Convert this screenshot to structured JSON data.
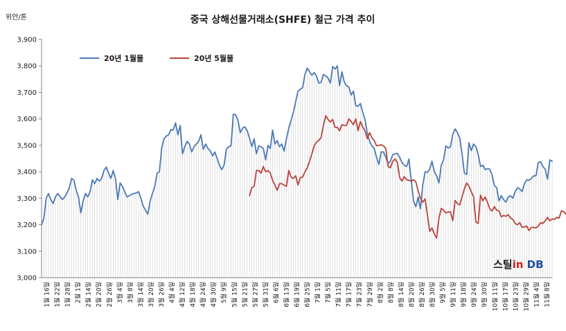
{
  "colors": {
    "series1": "#4a78b4",
    "series2": "#b8423c",
    "grid": "#c9c9c9",
    "axis": "#808080",
    "text": "#1a1a1a"
  },
  "brand": {
    "part1": "스틸",
    "part2": "in",
    "part3": "DB"
  },
  "chart_data": {
    "type": "line",
    "title": "중국 상해선물거래소(SHFE)  철근 가격 추이",
    "unit": "위안/톤",
    "ylim": [
      3000,
      3900
    ],
    "yticks": [
      3000,
      3100,
      3200,
      3300,
      3400,
      3500,
      3600,
      3700,
      3800,
      3900
    ],
    "ytick_labels": [
      "3,000",
      "3,100",
      "3,200",
      "3,300",
      "3,400",
      "3,500",
      "3,600",
      "3,700",
      "3,800",
      "3,900"
    ],
    "legend_position": "top-left",
    "grid": {
      "vertical": true,
      "horizontal": false
    },
    "x_labels": [
      "1월 16일",
      "1월 22일",
      "1월 28일",
      "2월 1일",
      "2월 14일",
      "2월 20일",
      "2월 26일",
      "3월 4일",
      "3월 8일",
      "3월 14일",
      "3월 20일",
      "3월 26일",
      "4월 4일",
      "4월 12일",
      "4월 18일",
      "4월 24일",
      "4월 30일",
      "5월 9일",
      "5월 15일",
      "5월 21일",
      "5월 27일",
      "5월 31일",
      "6월 6일",
      "6월 13일",
      "6월 19일",
      "6월 25일",
      "7월 1일",
      "7월 5일",
      "7월 11일",
      "7월 17일",
      "7월 23일",
      "7월 29일",
      "8월 2일",
      "8월 8일",
      "8월 14일",
      "8월 20일",
      "8월 26일",
      "8월 30일",
      "9월 5일",
      "9월 11일",
      "9월 18일",
      "9월 24일",
      "9월 30일",
      "10월 11일",
      "10월 17일",
      "10월 23일",
      "10월 29일",
      "11월 4일",
      "11월 8일"
    ],
    "series": [
      {
        "name": "20년 1월물",
        "values": [
          3200,
          3225,
          3300,
          3318,
          3295,
          3280,
          3305,
          3318,
          3307,
          3295,
          3305,
          3320,
          3340,
          3375,
          3368,
          3330,
          3305,
          3245,
          3290,
          3318,
          3305,
          3325,
          3370,
          3355,
          3375,
          3365,
          3375,
          3405,
          3418,
          3395,
          3375,
          3405,
          3375,
          3295,
          3358,
          3345,
          3325,
          3305,
          3310,
          3315,
          3318,
          3320,
          3325,
          3300,
          3270,
          3255,
          3240,
          3290,
          3318,
          3345,
          3395,
          3400,
          3490,
          3525,
          3535,
          3540,
          3560,
          3558,
          3585,
          3540,
          3575,
          3468,
          3495,
          3515,
          3505,
          3475,
          3495,
          3505,
          3515,
          3540,
          3485,
          3505,
          3488,
          3480,
          3460,
          3475,
          3450,
          3425,
          3408,
          3425,
          3485,
          3495,
          3498,
          3618,
          3615,
          3595,
          3548,
          3565,
          3570,
          3555,
          3528,
          3495,
          3525,
          3468,
          3498,
          3495,
          3488,
          3445,
          3500,
          3488,
          3558,
          3505,
          3518,
          3495,
          3505,
          3478,
          3525,
          3565,
          3595,
          3625,
          3665,
          3705,
          3712,
          3718,
          3768,
          3792,
          3778,
          3765,
          3775,
          3762,
          3735,
          3738,
          3768,
          3762,
          3755,
          3735,
          3798,
          3788,
          3800,
          3725,
          3778,
          3740,
          3725,
          3720,
          3690,
          3705,
          3650,
          3648,
          3658,
          3625,
          3598,
          3545,
          3515,
          3498,
          3488,
          3455,
          3428,
          3475,
          3475,
          3455,
          3432,
          3440,
          3465,
          3468,
          3470,
          3455,
          3435,
          3425,
          3420,
          3448,
          3370,
          3290,
          3268,
          3305,
          3260,
          3350,
          3400,
          3398,
          3410,
          3440,
          3400,
          3385,
          3358,
          3425,
          3445,
          3498,
          3490,
          3495,
          3542,
          3562,
          3548,
          3528,
          3468,
          3395,
          3390,
          3510,
          3480,
          3505,
          3495,
          3465,
          3420,
          3425,
          3408,
          3412,
          3410,
          3388,
          3348,
          3340,
          3290,
          3310,
          3295,
          3285,
          3305,
          3310,
          3300,
          3325,
          3340,
          3335,
          3325,
          3355,
          3370,
          3368,
          3375,
          3385,
          3385,
          3435,
          3438,
          3420,
          3410,
          3372,
          3445,
          3440
        ]
      },
      {
        "name": "20년 5월물",
        "start_index": 90,
        "values": [
          3310,
          3340,
          3345,
          3405,
          3405,
          3395,
          3420,
          3400,
          3405,
          3395,
          3368,
          3350,
          3330,
          3355,
          3355,
          3350,
          3345,
          3405,
          3380,
          3375,
          3385,
          3350,
          3378,
          3380,
          3400,
          3415,
          3440,
          3468,
          3498,
          3512,
          3518,
          3530,
          3575,
          3612,
          3598,
          3588,
          3598,
          3568,
          3568,
          3555,
          3578,
          3575,
          3575,
          3600,
          3590,
          3578,
          3600,
          3555,
          3590,
          3570,
          3555,
          3525,
          3548,
          3528,
          3518,
          3498,
          3500,
          3502,
          3498,
          3488,
          3420,
          3415,
          3440,
          3448,
          3435,
          3378,
          3365,
          3382,
          3370,
          3368,
          3365,
          3370,
          3362,
          3328,
          3300,
          3285,
          3298,
          3238,
          3175,
          3188,
          3165,
          3150,
          3225,
          3262,
          3255,
          3245,
          3248,
          3248,
          3215,
          3292,
          3280,
          3275,
          3305,
          3335,
          3358,
          3345,
          3325,
          3305,
          3210,
          3205,
          3312,
          3290,
          3305,
          3285,
          3260,
          3252,
          3268,
          3255,
          3252,
          3230,
          3235,
          3232,
          3238,
          3225,
          3220,
          3205,
          3200,
          3208,
          3190,
          3192,
          3195,
          3178,
          3190,
          3190,
          3188,
          3195,
          3208,
          3205,
          3215,
          3228,
          3215,
          3222,
          3220,
          3228,
          3225,
          3252,
          3250,
          3240,
          3230,
          3215,
          3260,
          3258
        ]
      }
    ]
  }
}
